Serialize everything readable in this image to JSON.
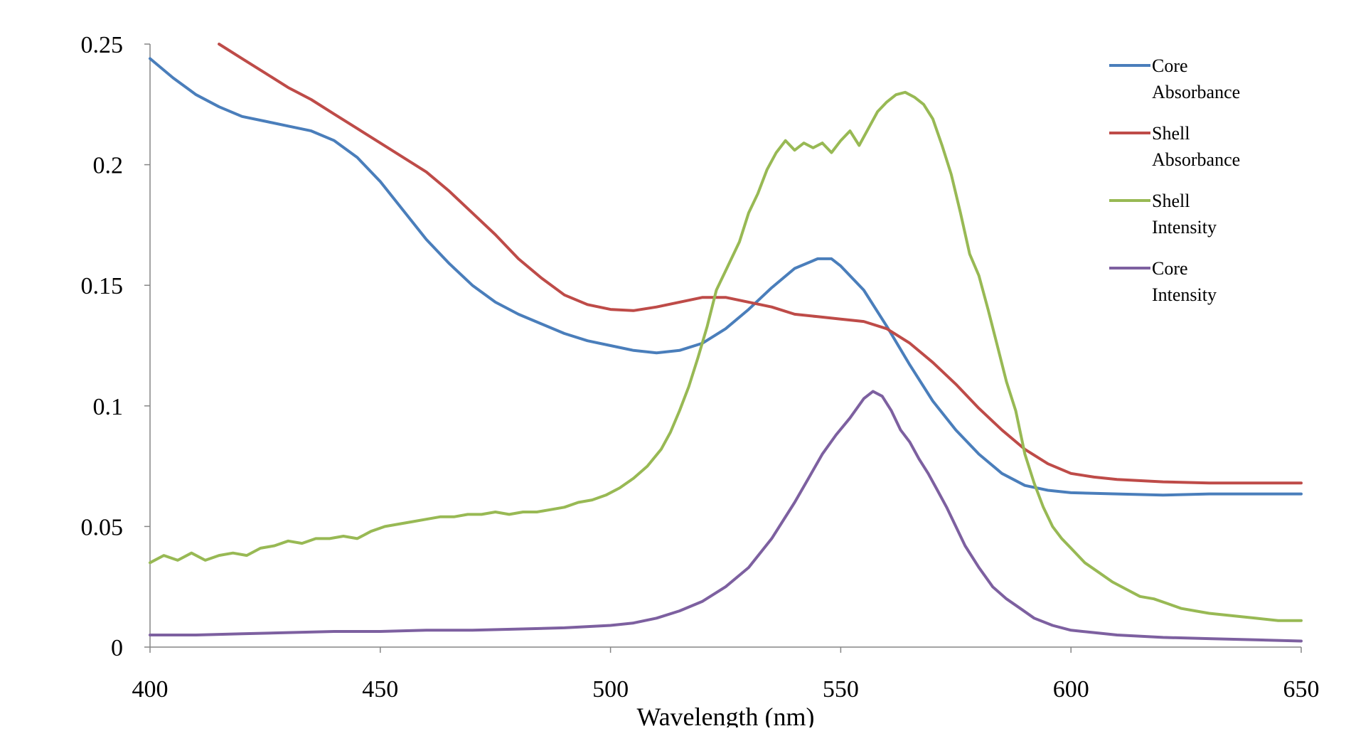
{
  "chart_data": {
    "type": "line",
    "title": "",
    "xlabel": "Wavelength (nm)",
    "ylabel": "",
    "xlim": [
      400,
      650
    ],
    "ylim": [
      0,
      0.25
    ],
    "x_ticks": [
      400,
      450,
      500,
      550,
      600,
      650
    ],
    "y_ticks": [
      0,
      0.05,
      0.1,
      0.15,
      0.2,
      0.25
    ],
    "x_tick_labels": [
      "400",
      "450",
      "500",
      "550",
      "600",
      "650"
    ],
    "y_tick_labels": [
      "0",
      "0.05",
      "0.1",
      "0.15",
      "0.2",
      "0.25"
    ],
    "grid": false,
    "legend_position": "top-right",
    "series": [
      {
        "name": "Core Absorbance",
        "legend_lines": [
          "Core",
          "Absorbance"
        ],
        "color": "#4a7ebb",
        "points": [
          [
            400,
            0.244
          ],
          [
            405,
            0.236
          ],
          [
            410,
            0.229
          ],
          [
            415,
            0.224
          ],
          [
            420,
            0.22
          ],
          [
            425,
            0.218
          ],
          [
            430,
            0.216
          ],
          [
            435,
            0.214
          ],
          [
            440,
            0.21
          ],
          [
            445,
            0.203
          ],
          [
            450,
            0.193
          ],
          [
            455,
            0.181
          ],
          [
            460,
            0.169
          ],
          [
            465,
            0.159
          ],
          [
            470,
            0.15
          ],
          [
            475,
            0.143
          ],
          [
            480,
            0.138
          ],
          [
            485,
            0.134
          ],
          [
            490,
            0.13
          ],
          [
            495,
            0.127
          ],
          [
            500,
            0.125
          ],
          [
            505,
            0.123
          ],
          [
            510,
            0.122
          ],
          [
            515,
            0.123
          ],
          [
            520,
            0.126
          ],
          [
            525,
            0.132
          ],
          [
            530,
            0.14
          ],
          [
            535,
            0.149
          ],
          [
            540,
            0.157
          ],
          [
            545,
            0.161
          ],
          [
            548,
            0.161
          ],
          [
            550,
            0.158
          ],
          [
            555,
            0.148
          ],
          [
            560,
            0.133
          ],
          [
            565,
            0.117
          ],
          [
            570,
            0.102
          ],
          [
            575,
            0.09
          ],
          [
            580,
            0.08
          ],
          [
            585,
            0.072
          ],
          [
            590,
            0.067
          ],
          [
            595,
            0.065
          ],
          [
            600,
            0.064
          ],
          [
            610,
            0.0635
          ],
          [
            620,
            0.063
          ],
          [
            630,
            0.0635
          ],
          [
            640,
            0.0635
          ],
          [
            650,
            0.0635
          ]
        ]
      },
      {
        "name": "Shell Absorbance",
        "legend_lines": [
          "Shell",
          "Absorbance"
        ],
        "color": "#be4b48",
        "points": [
          [
            415,
            0.25
          ],
          [
            420,
            0.244
          ],
          [
            425,
            0.238
          ],
          [
            430,
            0.232
          ],
          [
            435,
            0.227
          ],
          [
            440,
            0.221
          ],
          [
            445,
            0.215
          ],
          [
            450,
            0.209
          ],
          [
            455,
            0.203
          ],
          [
            460,
            0.197
          ],
          [
            465,
            0.189
          ],
          [
            470,
            0.18
          ],
          [
            475,
            0.171
          ],
          [
            480,
            0.161
          ],
          [
            485,
            0.153
          ],
          [
            490,
            0.146
          ],
          [
            495,
            0.142
          ],
          [
            500,
            0.14
          ],
          [
            505,
            0.1395
          ],
          [
            510,
            0.141
          ],
          [
            515,
            0.143
          ],
          [
            520,
            0.145
          ],
          [
            525,
            0.145
          ],
          [
            530,
            0.143
          ],
          [
            535,
            0.141
          ],
          [
            540,
            0.138
          ],
          [
            545,
            0.137
          ],
          [
            550,
            0.136
          ],
          [
            555,
            0.135
          ],
          [
            560,
            0.132
          ],
          [
            565,
            0.126
          ],
          [
            570,
            0.118
          ],
          [
            575,
            0.109
          ],
          [
            580,
            0.099
          ],
          [
            585,
            0.09
          ],
          [
            590,
            0.082
          ],
          [
            595,
            0.076
          ],
          [
            600,
            0.072
          ],
          [
            605,
            0.0705
          ],
          [
            610,
            0.0695
          ],
          [
            620,
            0.0685
          ],
          [
            630,
            0.068
          ],
          [
            640,
            0.068
          ],
          [
            650,
            0.068
          ]
        ]
      },
      {
        "name": "Shell Intensity",
        "legend_lines": [
          "Shell",
          "Intensity"
        ],
        "color": "#98b954",
        "points": [
          [
            400,
            0.035
          ],
          [
            403,
            0.038
          ],
          [
            406,
            0.036
          ],
          [
            409,
            0.039
          ],
          [
            412,
            0.036
          ],
          [
            415,
            0.038
          ],
          [
            418,
            0.039
          ],
          [
            421,
            0.038
          ],
          [
            424,
            0.041
          ],
          [
            427,
            0.042
          ],
          [
            430,
            0.044
          ],
          [
            433,
            0.043
          ],
          [
            436,
            0.045
          ],
          [
            439,
            0.045
          ],
          [
            442,
            0.046
          ],
          [
            445,
            0.045
          ],
          [
            448,
            0.048
          ],
          [
            451,
            0.05
          ],
          [
            454,
            0.051
          ],
          [
            457,
            0.052
          ],
          [
            460,
            0.053
          ],
          [
            463,
            0.054
          ],
          [
            466,
            0.054
          ],
          [
            469,
            0.055
          ],
          [
            472,
            0.055
          ],
          [
            475,
            0.056
          ],
          [
            478,
            0.055
          ],
          [
            481,
            0.056
          ],
          [
            484,
            0.056
          ],
          [
            487,
            0.057
          ],
          [
            490,
            0.058
          ],
          [
            493,
            0.06
          ],
          [
            496,
            0.061
          ],
          [
            499,
            0.063
          ],
          [
            502,
            0.066
          ],
          [
            505,
            0.07
          ],
          [
            508,
            0.075
          ],
          [
            511,
            0.082
          ],
          [
            513,
            0.089
          ],
          [
            515,
            0.098
          ],
          [
            517,
            0.108
          ],
          [
            519,
            0.12
          ],
          [
            521,
            0.133
          ],
          [
            523,
            0.148
          ],
          [
            526,
            0.16
          ],
          [
            528,
            0.168
          ],
          [
            530,
            0.18
          ],
          [
            532,
            0.188
          ],
          [
            534,
            0.198
          ],
          [
            536,
            0.205
          ],
          [
            538,
            0.21
          ],
          [
            540,
            0.206
          ],
          [
            542,
            0.209
          ],
          [
            544,
            0.207
          ],
          [
            546,
            0.209
          ],
          [
            548,
            0.205
          ],
          [
            550,
            0.21
          ],
          [
            552,
            0.214
          ],
          [
            554,
            0.208
          ],
          [
            556,
            0.215
          ],
          [
            558,
            0.222
          ],
          [
            560,
            0.226
          ],
          [
            562,
            0.229
          ],
          [
            564,
            0.23
          ],
          [
            566,
            0.228
          ],
          [
            568,
            0.225
          ],
          [
            570,
            0.219
          ],
          [
            572,
            0.208
          ],
          [
            574,
            0.196
          ],
          [
            576,
            0.18
          ],
          [
            578,
            0.163
          ],
          [
            580,
            0.154
          ],
          [
            582,
            0.14
          ],
          [
            584,
            0.125
          ],
          [
            586,
            0.11
          ],
          [
            588,
            0.098
          ],
          [
            590,
            0.08
          ],
          [
            592,
            0.068
          ],
          [
            594,
            0.058
          ],
          [
            596,
            0.05
          ],
          [
            598,
            0.045
          ],
          [
            600,
            0.041
          ],
          [
            603,
            0.035
          ],
          [
            606,
            0.031
          ],
          [
            609,
            0.027
          ],
          [
            612,
            0.024
          ],
          [
            615,
            0.021
          ],
          [
            618,
            0.02
          ],
          [
            621,
            0.018
          ],
          [
            624,
            0.016
          ],
          [
            627,
            0.015
          ],
          [
            630,
            0.014
          ],
          [
            635,
            0.013
          ],
          [
            640,
            0.012
          ],
          [
            645,
            0.011
          ],
          [
            650,
            0.011
          ]
        ]
      },
      {
        "name": "Core Intensity",
        "legend_lines": [
          "Core",
          "Intensity"
        ],
        "color": "#7d60a0",
        "points": [
          [
            400,
            0.005
          ],
          [
            410,
            0.005
          ],
          [
            420,
            0.0055
          ],
          [
            430,
            0.006
          ],
          [
            440,
            0.0065
          ],
          [
            450,
            0.0065
          ],
          [
            460,
            0.007
          ],
          [
            470,
            0.007
          ],
          [
            480,
            0.0075
          ],
          [
            490,
            0.008
          ],
          [
            500,
            0.009
          ],
          [
            505,
            0.01
          ],
          [
            510,
            0.012
          ],
          [
            515,
            0.015
          ],
          [
            520,
            0.019
          ],
          [
            525,
            0.025
          ],
          [
            530,
            0.033
          ],
          [
            535,
            0.045
          ],
          [
            540,
            0.06
          ],
          [
            543,
            0.07
          ],
          [
            546,
            0.08
          ],
          [
            549,
            0.088
          ],
          [
            552,
            0.095
          ],
          [
            555,
            0.103
          ],
          [
            557,
            0.106
          ],
          [
            559,
            0.104
          ],
          [
            561,
            0.098
          ],
          [
            563,
            0.09
          ],
          [
            565,
            0.085
          ],
          [
            567,
            0.078
          ],
          [
            569,
            0.072
          ],
          [
            571,
            0.065
          ],
          [
            573,
            0.058
          ],
          [
            575,
            0.05
          ],
          [
            577,
            0.042
          ],
          [
            580,
            0.033
          ],
          [
            583,
            0.025
          ],
          [
            586,
            0.02
          ],
          [
            589,
            0.016
          ],
          [
            592,
            0.012
          ],
          [
            596,
            0.009
          ],
          [
            600,
            0.007
          ],
          [
            605,
            0.006
          ],
          [
            610,
            0.005
          ],
          [
            620,
            0.004
          ],
          [
            630,
            0.0035
          ],
          [
            640,
            0.003
          ],
          [
            650,
            0.0025
          ]
        ]
      }
    ]
  }
}
